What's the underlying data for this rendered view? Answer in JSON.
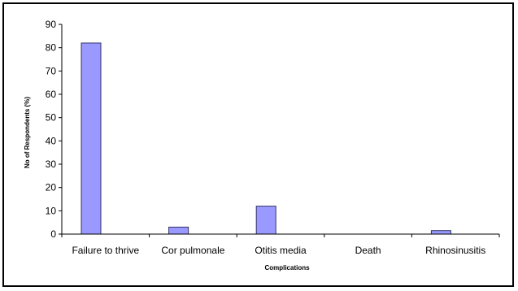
{
  "chart_data": {
    "type": "bar",
    "title": "",
    "xlabel": "Complications",
    "ylabel": "No of Respondents (%)",
    "categories": [
      "Failure to thrive",
      "Cor pulmonale",
      "Otitis media",
      "Death",
      "Rhinosinusitis"
    ],
    "values": [
      82,
      3,
      12,
      0,
      1.5
    ],
    "ylim": [
      0,
      90
    ],
    "yticks": [
      0,
      10,
      20,
      30,
      40,
      50,
      60,
      70,
      80,
      90
    ],
    "grid": false,
    "legend": "none",
    "colors": {
      "bar_fill": "#9999ff",
      "bar_stroke": "#333366",
      "axis": "#000000"
    }
  }
}
